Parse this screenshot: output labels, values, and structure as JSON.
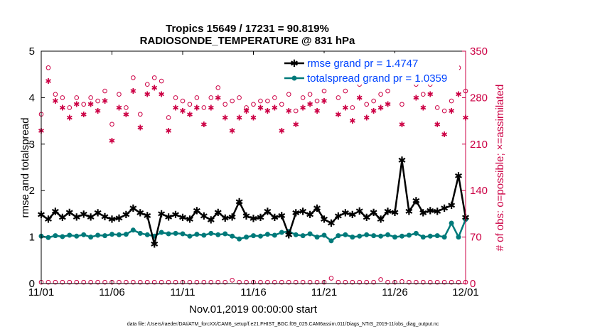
{
  "chart_data": {
    "type": "line",
    "title": "Tropics 15649 / 17231 = 90.819%",
    "subtitle": "RADIOSONDE_TEMPERATURE @ 831 hPa",
    "xlabel": "Nov.01,2019 00:00:00 start",
    "ylabel_left": "rmse and totalspread",
    "ylabel_right": "# of obs: o=possible; ×=assimilated",
    "x_tick_labels": [
      "11/01",
      "11/06",
      "11/11",
      "11/16",
      "11/21",
      "11/26",
      "12/01"
    ],
    "x_tick_days": [
      0,
      5,
      10,
      15,
      20,
      25,
      30
    ],
    "xlim": [
      0,
      30
    ],
    "ylim_left": [
      0,
      5
    ],
    "y_ticks_left": [
      "0",
      "1",
      "2",
      "3",
      "4",
      "5"
    ],
    "ylim_right": [
      0,
      350
    ],
    "y_ticks_right": [
      "0",
      "70",
      "140",
      "210",
      "280",
      "350"
    ],
    "colors": {
      "rmse": "#000000",
      "spread": "#007a7a",
      "obs": "#cc0044",
      "right_axis": "#cc0044",
      "legend_text": "#0044ff"
    },
    "legend_location": "top-right",
    "series": [
      {
        "name": "rmse",
        "legend": "rmse grand pr = 1.4747",
        "axis": "left",
        "x": [
          0,
          0.5,
          1,
          1.5,
          2,
          2.5,
          3,
          3.5,
          4,
          4.5,
          5,
          5.5,
          6,
          6.5,
          7,
          7.5,
          8,
          8.5,
          9,
          9.5,
          10,
          10.5,
          11,
          11.5,
          12,
          12.5,
          13,
          13.5,
          14,
          14.5,
          15,
          15.5,
          16,
          16.5,
          17,
          17.5,
          18,
          18.5,
          19,
          19.5,
          20,
          20.5,
          21,
          21.5,
          22,
          22.5,
          23,
          23.5,
          24,
          24.5,
          25,
          25.5,
          26,
          26.5,
          27,
          27.5,
          28,
          28.5,
          29,
          29.5,
          30
        ],
        "values": [
          1.48,
          1.38,
          1.55,
          1.42,
          1.53,
          1.43,
          1.49,
          1.43,
          1.52,
          1.44,
          1.38,
          1.41,
          1.48,
          1.62,
          1.52,
          1.46,
          0.85,
          1.5,
          1.43,
          1.48,
          1.42,
          1.38,
          1.57,
          1.45,
          1.37,
          1.53,
          1.41,
          1.43,
          1.76,
          1.45,
          1.4,
          1.42,
          1.55,
          1.42,
          1.46,
          1.05,
          1.52,
          1.55,
          1.48,
          1.62,
          1.38,
          1.3,
          1.45,
          1.52,
          1.48,
          1.56,
          1.42,
          1.53,
          1.38,
          1.55,
          1.53,
          2.65,
          1.55,
          1.78,
          1.52,
          1.57,
          1.55,
          1.62,
          1.68,
          2.32,
          1.42
        ]
      },
      {
        "name": "totalspread",
        "legend": "totalspread grand pr = 1.0359",
        "axis": "left",
        "x": [
          0,
          0.5,
          1,
          1.5,
          2,
          2.5,
          3,
          3.5,
          4,
          4.5,
          5,
          5.5,
          6,
          6.5,
          7,
          7.5,
          8,
          8.5,
          9,
          9.5,
          10,
          10.5,
          11,
          11.5,
          12,
          12.5,
          13,
          13.5,
          14,
          14.5,
          15,
          15.5,
          16,
          16.5,
          17,
          17.5,
          18,
          18.5,
          19,
          19.5,
          20,
          20.5,
          21,
          21.5,
          22,
          22.5,
          23,
          23.5,
          24,
          24.5,
          25,
          25.5,
          26,
          26.5,
          27,
          27.5,
          28,
          28.5,
          29,
          29.5,
          30
        ],
        "values": [
          1.02,
          0.99,
          1.03,
          1.01,
          1.04,
          1.02,
          1.05,
          1.0,
          1.04,
          1.03,
          1.06,
          1.05,
          1.06,
          1.15,
          1.08,
          1.05,
          1.02,
          1.1,
          1.07,
          1.08,
          1.07,
          1.02,
          1.06,
          1.04,
          1.08,
          1.05,
          1.07,
          1.02,
          0.96,
          1.0,
          1.03,
          1.02,
          1.06,
          1.04,
          1.1,
          1.12,
          1.05,
          1.03,
          1.07,
          1.0,
          1.04,
          0.92,
          1.03,
          1.05,
          1.0,
          1.02,
          1.05,
          1.03,
          1.02,
          1.05,
          1.0,
          1.02,
          1.04,
          1.08,
          1.0,
          1.02,
          1.03,
          1.0,
          1.3,
          1.0,
          1.38
        ]
      },
      {
        "name": "possible",
        "marker": "o",
        "axis": "right",
        "x": [
          0,
          0.5,
          1,
          1.5,
          2,
          2.5,
          3,
          3.5,
          4,
          4.5,
          5,
          5.5,
          6,
          6.5,
          7,
          7.5,
          8,
          8.5,
          9,
          9.5,
          10,
          10.5,
          11,
          11.5,
          12,
          12.5,
          13,
          13.5,
          14,
          14.5,
          15,
          15.5,
          16,
          16.5,
          17,
          17.5,
          18,
          18.5,
          19,
          19.5,
          20,
          20.5,
          21,
          21.5,
          22,
          22.5,
          23,
          23.5,
          24,
          24.5,
          25,
          25.5,
          26,
          26.5,
          27,
          27.5,
          28,
          28.5,
          29,
          29.5,
          30
        ],
        "values": [
          255,
          325,
          285,
          280,
          265,
          280,
          270,
          280,
          275,
          290,
          240,
          285,
          265,
          310,
          255,
          300,
          310,
          305,
          250,
          280,
          275,
          270,
          280,
          265,
          280,
          295,
          270,
          275,
          280,
          265,
          270,
          275,
          275,
          280,
          270,
          285,
          260,
          280,
          285,
          275,
          290,
          335,
          280,
          290,
          265,
          300,
          270,
          275,
          285,
          290,
          320,
          270,
          330,
          300,
          285,
          300,
          265,
          260,
          275,
          325,
          290
        ]
      },
      {
        "name": "assimilated",
        "marker": "x",
        "axis": "right",
        "x": [
          0,
          0.5,
          1,
          1.5,
          2,
          2.5,
          3,
          3.5,
          4,
          4.5,
          5,
          5.5,
          6,
          6.5,
          7,
          7.5,
          8,
          8.5,
          9,
          9.5,
          10,
          10.5,
          11,
          11.5,
          12,
          12.5,
          13,
          13.5,
          14,
          14.5,
          15,
          15.5,
          16,
          16.5,
          17,
          17.5,
          18,
          18.5,
          19,
          19.5,
          20,
          20.5,
          21,
          21.5,
          22,
          22.5,
          23,
          23.5,
          24,
          24.5,
          25,
          25.5,
          26,
          26.5,
          27,
          27.5,
          28,
          28.5,
          29,
          29.5,
          30
        ],
        "values": [
          230,
          305,
          275,
          265,
          250,
          270,
          255,
          270,
          260,
          275,
          215,
          265,
          255,
          290,
          235,
          285,
          295,
          285,
          230,
          265,
          260,
          255,
          265,
          240,
          265,
          280,
          250,
          230,
          250,
          260,
          250,
          265,
          260,
          265,
          230,
          260,
          240,
          265,
          270,
          260,
          275,
          310,
          255,
          265,
          245,
          280,
          250,
          260,
          265,
          270,
          305,
          240,
          310,
          280,
          265,
          285,
          240,
          225,
          260,
          285,
          250
        ]
      }
    ],
    "obs_near_zero": {
      "x": [
        0,
        0.5,
        1,
        1.5,
        2,
        2.5,
        3,
        3.5,
        4,
        4.5,
        5,
        5.5,
        6,
        6.5,
        7,
        7.5,
        8,
        8.5,
        9,
        9.5,
        10,
        10.5,
        11,
        11.5,
        12,
        12.5,
        13,
        13.5,
        14,
        14.5,
        15,
        15.5,
        16,
        16.5,
        17,
        17.5,
        18,
        18.5,
        19,
        19.5,
        20,
        20.5,
        21,
        21.5,
        22,
        22.5,
        23,
        23.5,
        24,
        24.5,
        25,
        25.5,
        26,
        26.5,
        27,
        27.5,
        28,
        28.5,
        29,
        29.5,
        30
      ],
      "values": [
        2,
        2,
        2,
        2,
        2,
        2,
        2,
        2,
        2,
        2,
        2,
        2,
        2,
        2,
        2,
        2,
        2,
        2,
        2,
        2,
        2,
        2,
        2,
        2,
        2,
        2,
        2,
        5,
        2,
        2,
        2,
        2,
        2,
        2,
        2,
        2,
        2,
        2,
        2,
        2,
        2,
        8,
        2,
        2,
        2,
        2,
        2,
        2,
        6,
        2,
        2,
        3,
        2,
        2,
        2,
        2,
        2,
        2,
        2,
        2,
        2
      ]
    },
    "footnote": "data file: /Users/raeder/DAI/ATM_forcXX/CAM6_setup/f.e21.FHIST_BGC.f09_025.CAM6assim.011/Diags_NTrS_2019-11/obs_diag_output.nc"
  }
}
